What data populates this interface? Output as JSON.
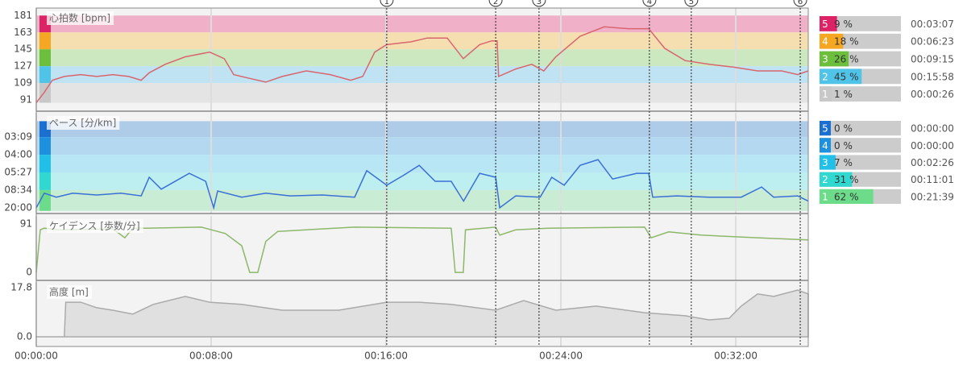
{
  "chart_data": [
    {
      "type": "line",
      "title": "心拍数 [bpm]",
      "color": "#d9666f",
      "x": [
        0,
        22,
        44,
        77,
        122,
        166,
        210,
        254,
        288,
        310,
        354,
        409,
        476,
        516,
        542,
        586,
        630,
        675,
        741,
        807,
        863,
        896,
        929,
        962,
        1029,
        1073,
        1128,
        1172,
        1217,
        1250,
        1265,
        1269,
        1316,
        1360,
        1393,
        1426,
        1493,
        1559,
        1625,
        1681,
        1725,
        1781,
        1847,
        1913,
        1980,
        2046,
        2090,
        2119
      ],
      "values": [
        88,
        99,
        112,
        116,
        118,
        116,
        118,
        116,
        112,
        120,
        129,
        137,
        142,
        135,
        118,
        114,
        110,
        116,
        122,
        118,
        112,
        116,
        142,
        150,
        153,
        157,
        157,
        135,
        150,
        154,
        154,
        116,
        124,
        129,
        122,
        137,
        159,
        169,
        167,
        167,
        146,
        133,
        129,
        126,
        122,
        122,
        118,
        122
      ],
      "ylim": [
        79,
        189
      ],
      "yticks": [
        181,
        163,
        145,
        127,
        109,
        91
      ],
      "zones": [
        {
          "name": "5",
          "color": "#dd2266",
          "band": "#efb0c8",
          "from": 163,
          "to": 181,
          "percent": 9,
          "percent_label": "9 %",
          "time": "00:03:07"
        },
        {
          "name": "4",
          "color": "#f5a623",
          "band": "#f5dfb0",
          "from": 145,
          "to": 163,
          "percent": 18,
          "percent_label": "18 %",
          "time": "00:06:23"
        },
        {
          "name": "3",
          "color": "#6cbf3c",
          "band": "#cce8c0",
          "from": 127,
          "to": 145,
          "percent": 26,
          "percent_label": "26 %",
          "time": "00:09:15"
        },
        {
          "name": "2",
          "color": "#4fc3e8",
          "band": "#bfe3f2",
          "from": 109,
          "to": 127,
          "percent": 45,
          "percent_label": "45 %",
          "time": "00:15:58"
        },
        {
          "name": "1",
          "color": "#c8c8c8",
          "band": "#e4e4e4",
          "from": 88,
          "to": 109,
          "percent": 1,
          "percent_label": "1 %",
          "time": "00:00:26"
        }
      ]
    },
    {
      "type": "line",
      "title": "ペース [分/km]",
      "color": "#3a6fd8",
      "x": [
        0,
        22,
        55,
        100,
        166,
        232,
        288,
        310,
        343,
        420,
        465,
        487,
        498,
        564,
        630,
        697,
        785,
        874,
        907,
        962,
        1007,
        1051,
        1095,
        1139,
        1173,
        1217,
        1261,
        1272,
        1316,
        1383,
        1415,
        1449,
        1493,
        1542,
        1582,
        1648,
        1681,
        1692,
        1758,
        1847,
        1935,
        1991,
        2024,
        2090,
        2119
      ],
      "values": [
        3.0,
        6.3,
        5.4,
        6.3,
        5.9,
        6.3,
        5.7,
        9.9,
        7.2,
        10.8,
        9.0,
        3.0,
        6.8,
        5.4,
        6.3,
        5.7,
        5.9,
        5.4,
        11.4,
        8.1,
        10.3,
        12.6,
        9.0,
        9.0,
        4.5,
        10.8,
        9.9,
        3.0,
        5.7,
        5.4,
        9.9,
        8.1,
        12.6,
        13.9,
        9.5,
        10.8,
        10.8,
        5.4,
        5.7,
        5.4,
        5.4,
        7.7,
        5.4,
        5.7,
        4.5
      ],
      "ylim": [
        1.7,
        24.5
      ],
      "yticks": [
        {
          "value": 19,
          "label": "03:09"
        },
        {
          "value": 15,
          "label": "04:00"
        },
        {
          "value": 11,
          "label": "05:27"
        },
        {
          "value": 7,
          "label": "08:34"
        },
        {
          "value": 3,
          "label": "20:00"
        }
      ],
      "zones": [
        {
          "name": "5",
          "color": "#1a6fd0",
          "band": "#aecbe8",
          "from": 19,
          "to": 22.6,
          "percent": 0,
          "percent_label": "0 %",
          "time": "00:00:00"
        },
        {
          "name": "4",
          "color": "#1e90e0",
          "band": "#b4d8f0",
          "from": 15,
          "to": 19,
          "percent": 0,
          "percent_label": "0 %",
          "time": "00:00:00"
        },
        {
          "name": "3",
          "color": "#22c0e8",
          "band": "#b8e6f4",
          "from": 11,
          "to": 15,
          "percent": 7,
          "percent_label": "7 %",
          "time": "00:02:26"
        },
        {
          "name": "2",
          "color": "#30d8d0",
          "band": "#bdeef0",
          "from": 7,
          "to": 11,
          "percent": 31,
          "percent_label": "31 %",
          "time": "00:11:01"
        },
        {
          "name": "1",
          "color": "#6ddc8a",
          "band": "#c8ecd4",
          "from": 2.3,
          "to": 7,
          "percent": 62,
          "percent_label": "62 %",
          "time": "00:21:39"
        }
      ]
    },
    {
      "type": "line",
      "title": "ケイデンス [歩数/分]",
      "color": "#8db86a",
      "x": [
        0,
        11,
        22,
        66,
        210,
        243,
        265,
        299,
        453,
        519,
        564,
        586,
        608,
        630,
        663,
        874,
        1139,
        1150,
        1172,
        1178,
        1261,
        1272,
        1316,
        1404,
        1670,
        1688,
        1736,
        1825,
        1980,
        2119
      ],
      "values": [
        0,
        80,
        83,
        80,
        82,
        65,
        83,
        83,
        85,
        73,
        50,
        0,
        0,
        58,
        77,
        85,
        83,
        0,
        0,
        80,
        85,
        70,
        80,
        83,
        85,
        65,
        76,
        70,
        65,
        61
      ],
      "ylim": [
        -15,
        106
      ],
      "yticks": [
        91,
        0
      ]
    },
    {
      "type": "area",
      "title": "高度 [m]",
      "color": "#aaaaaa",
      "fill": "#e0e0e0",
      "x": [
        0,
        77,
        81,
        122,
        166,
        210,
        265,
        321,
        409,
        476,
        564,
        675,
        830,
        962,
        1051,
        1139,
        1261,
        1338,
        1426,
        1537,
        1670,
        1781,
        1847,
        1902,
        1935,
        1980,
        2024,
        2090,
        2119
      ],
      "values": [
        0,
        0,
        12.5,
        12.5,
        10.5,
        9.6,
        8.2,
        11.7,
        14.6,
        12.5,
        11.7,
        9.6,
        9.6,
        12.5,
        12.5,
        11.7,
        9.6,
        13.1,
        9.6,
        11.1,
        8.7,
        7.6,
        6.1,
        6.7,
        11.1,
        15.5,
        14.6,
        16.9,
        15.5
      ],
      "ylim": [
        -3.5,
        19.8
      ],
      "yticks": [
        17.8,
        {
          "value": 0,
          "label": "0.0"
        }
      ]
    }
  ],
  "x_axis": {
    "xlim": [
      0,
      2119
    ],
    "xticks": [
      {
        "value": 0,
        "label": "00:00:00"
      },
      {
        "value": 480,
        "label": "00:08:00"
      },
      {
        "value": 960,
        "label": "00:16:00"
      },
      {
        "value": 1440,
        "label": "00:24:00"
      },
      {
        "value": 1920,
        "label": "00:32:00"
      }
    ]
  },
  "laps": {
    "x": [
      962,
      1261,
      1380,
      1683,
      1798,
      2097
    ],
    "labels": [
      "1",
      "2",
      "3",
      "4",
      "5",
      "6"
    ]
  }
}
